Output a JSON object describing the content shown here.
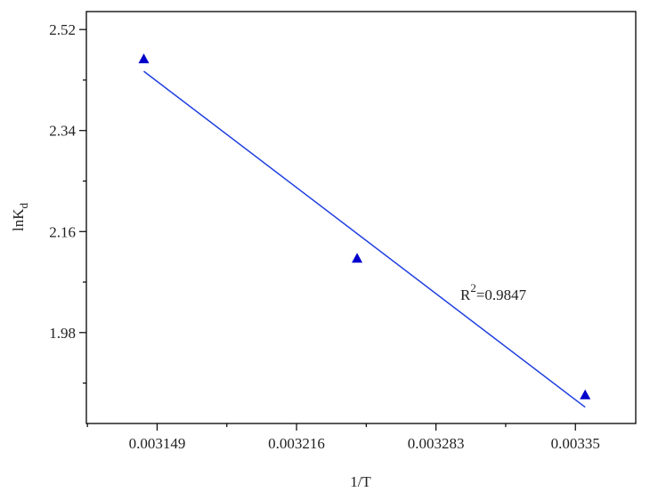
{
  "chart_data": {
    "type": "scatter",
    "x_label": "1/T",
    "y_label": {
      "base": "lnK",
      "sub": "d"
    },
    "annotation": {
      "base": "R",
      "sup": "2",
      "rest": "=0.9847"
    },
    "xlim": [
      0.003115,
      0.003379
    ],
    "ylim": [
      1.818,
      2.552
    ],
    "xticks": [
      0.003149,
      0.003216,
      0.003283,
      0.00335
    ],
    "yticks": [
      1.98,
      2.16,
      2.34,
      2.52
    ],
    "series": [
      {
        "x": [
          0.0031426,
          0.0032451,
          0.0033547
        ],
        "values": [
          2.4678,
          2.1125,
          1.8692
        ],
        "color": "#0000cc",
        "marker": "triangle"
      },
      {
        "x": [
          0.0031426,
          0.0033547
        ],
        "values": [
          2.4456,
          1.847
        ],
        "color": "#1f3fe0",
        "marker": "line"
      }
    ]
  }
}
